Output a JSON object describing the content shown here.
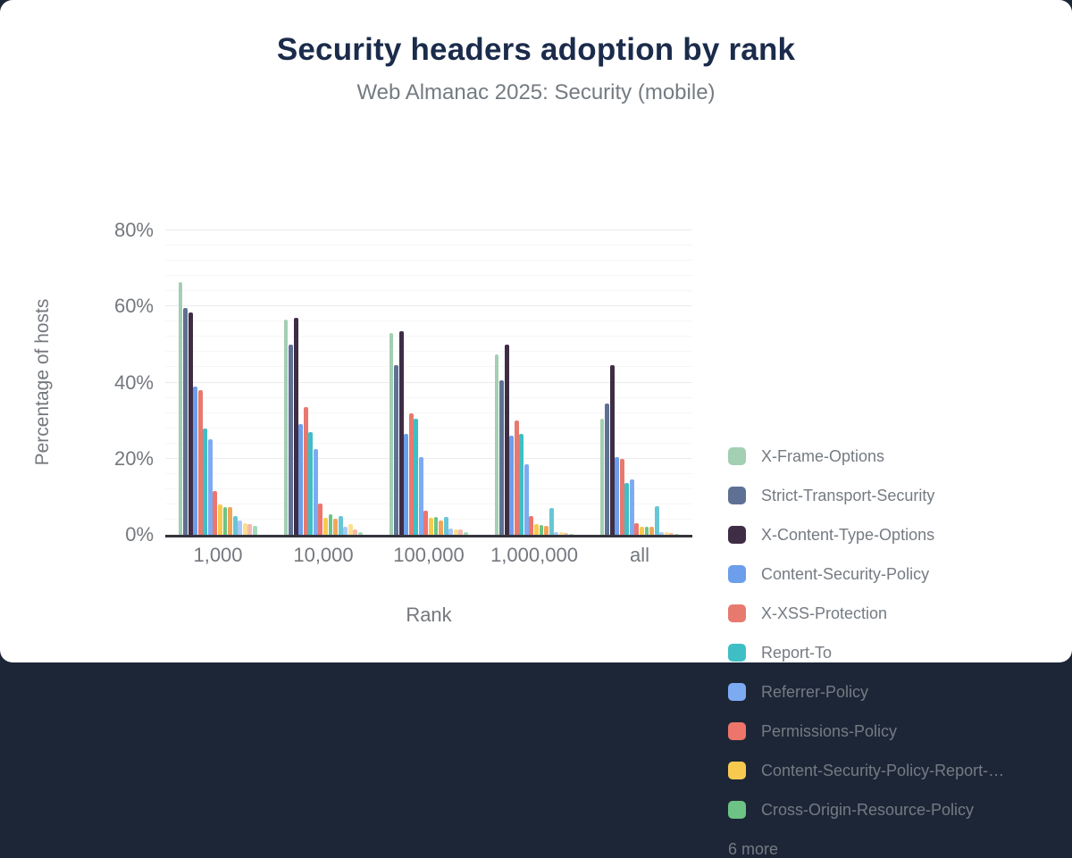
{
  "chart_data": {
    "type": "bar",
    "title": "Security headers adoption by rank",
    "subtitle": "Web Almanac 2025: Security (mobile)",
    "xlabel": "Rank",
    "ylabel": "Percentage of hosts",
    "ylim": [
      0,
      80
    ],
    "yticks": [
      {
        "value": 0,
        "label": "0%"
      },
      {
        "value": 20,
        "label": "20%"
      },
      {
        "value": 40,
        "label": "40%"
      },
      {
        "value": 60,
        "label": "60%"
      },
      {
        "value": 80,
        "label": "80%"
      }
    ],
    "minor_grid_step": 4,
    "grid": true,
    "legend_position": "right",
    "legend_more_label": "6 more",
    "categories": [
      "1,000",
      "10,000",
      "100,000",
      "1,000,000",
      "all"
    ],
    "series": [
      {
        "name": "X-Frame-Options",
        "color": "#a3cfb2",
        "in_legend": true,
        "values": [
          66.5,
          56.5,
          53.0,
          47.5,
          30.5
        ]
      },
      {
        "name": "Strict-Transport-Security",
        "color": "#5e7194",
        "in_legend": true,
        "values": [
          59.5,
          50.0,
          44.5,
          40.5,
          34.5
        ]
      },
      {
        "name": "X-Content-Type-Options",
        "color": "#3e2d44",
        "in_legend": true,
        "values": [
          58.5,
          57.0,
          53.5,
          50.0,
          44.5
        ]
      },
      {
        "name": "Content-Security-Policy",
        "color": "#6d9eeb",
        "in_legend": true,
        "values": [
          39.0,
          29.0,
          26.5,
          26.0,
          20.5
        ]
      },
      {
        "name": "X-XSS-Protection",
        "color": "#e8796e",
        "in_legend": true,
        "values": [
          38.0,
          33.5,
          32.0,
          30.0,
          20.0
        ]
      },
      {
        "name": "Report-To",
        "color": "#3fbfc5",
        "in_legend": true,
        "values": [
          28.0,
          27.0,
          30.5,
          26.5,
          13.5
        ]
      },
      {
        "name": "Referrer-Policy",
        "color": "#7cabf2",
        "in_legend": true,
        "values": [
          25.0,
          22.5,
          20.5,
          18.5,
          14.5
        ]
      },
      {
        "name": "Permissions-Policy",
        "color": "#ee756b",
        "in_legend": true,
        "values": [
          11.5,
          8.3,
          6.4,
          5.0,
          3.0
        ]
      },
      {
        "name": "Content-Security-Policy-Report-…",
        "color": "#f7ca4f",
        "in_legend": true,
        "values": [
          8.0,
          4.4,
          4.5,
          2.8,
          2.1
        ]
      },
      {
        "name": "Cross-Origin-Resource-Policy",
        "color": "#6cc385",
        "in_legend": true,
        "values": [
          7.3,
          5.4,
          4.7,
          2.5,
          2.1
        ]
      },
      {
        "name": "",
        "color": "#f2a559",
        "in_legend": false,
        "values": [
          7.2,
          4.3,
          3.8,
          2.3,
          2.2
        ]
      },
      {
        "name": "",
        "color": "#67c6d6",
        "in_legend": false,
        "values": [
          5.0,
          5.0,
          4.7,
          7.1,
          7.6
        ]
      },
      {
        "name": "",
        "color": "#a9c7f7",
        "in_legend": false,
        "values": [
          3.8,
          2.1,
          1.7,
          0.8,
          0.6
        ]
      },
      {
        "name": "",
        "color": "#fbdf90",
        "in_legend": false,
        "values": [
          3.1,
          2.8,
          1.5,
          0.7,
          0.7
        ]
      },
      {
        "name": "",
        "color": "#f5b8ae",
        "in_legend": false,
        "values": [
          2.8,
          1.4,
          1.4,
          0.5,
          0.4
        ]
      },
      {
        "name": "",
        "color": "#a5d9b8",
        "in_legend": false,
        "values": [
          2.4,
          0.8,
          0.6,
          0.3,
          0.2
        ]
      }
    ]
  },
  "colors": {
    "page_background": "#1d2637",
    "card_background": "#ffffff",
    "title_text": "#1b2b4b",
    "muted_text": "#757b82",
    "axis_line": "#35353d"
  }
}
